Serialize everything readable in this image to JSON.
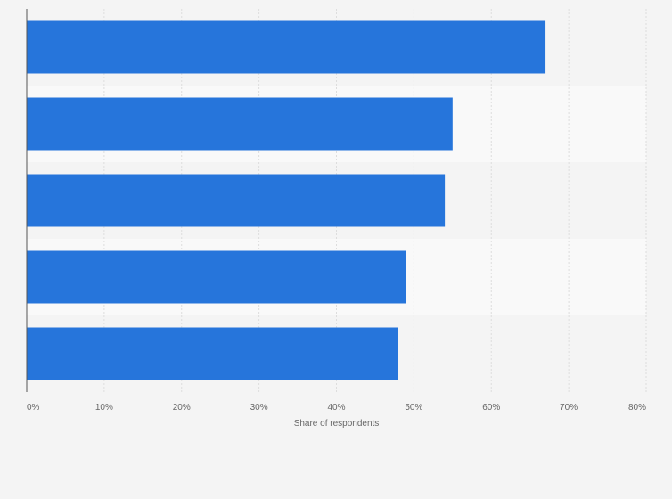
{
  "chart_data": {
    "type": "bar",
    "orientation": "horizontal",
    "categories": [
      "",
      "",
      "",
      "",
      ""
    ],
    "values": [
      67,
      55,
      54,
      49,
      48
    ],
    "xlabel": "Share of respondents",
    "ylabel": "",
    "xlim": [
      0,
      80
    ],
    "x_ticks": [
      0,
      10,
      20,
      30,
      40,
      50,
      60,
      70,
      80
    ],
    "x_tick_labels": [
      "0%",
      "10%",
      "20%",
      "30%",
      "40%",
      "50%",
      "60%",
      "70%",
      "80%"
    ],
    "unit": "%",
    "grid": true,
    "legend": "none"
  },
  "colors": {
    "bar": "#2675db",
    "background": "#f4f4f4",
    "band_alt": "#f9f9f9",
    "gridline": "#dddddd",
    "axis": "#555555",
    "text": "#666666"
  }
}
